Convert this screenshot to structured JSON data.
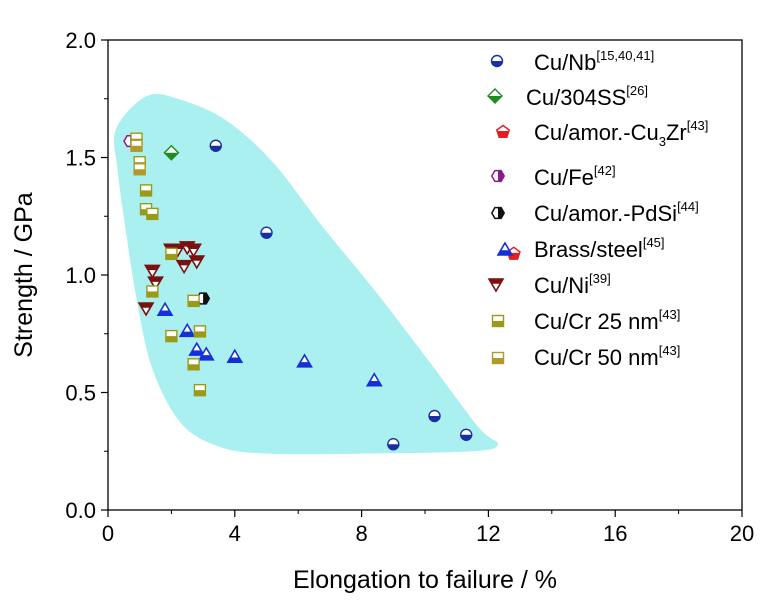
{
  "chart_data": {
    "type": "scatter",
    "title": "",
    "xlabel": "Elongation to failure / %",
    "ylabel": "Strength / GPa",
    "xlim": [
      0,
      20
    ],
    "ylim": [
      0.0,
      2.0
    ],
    "x_ticks": [
      0,
      4,
      8,
      12,
      16,
      20
    ],
    "x_tick_labels": [
      "0",
      "4",
      "8",
      "12",
      "16",
      "20"
    ],
    "y_ticks": [
      0.0,
      0.5,
      1.0,
      1.5,
      2.0
    ],
    "y_tick_labels": [
      "0.0",
      "0.5",
      "1.0",
      "1.5",
      "2.0"
    ],
    "grid": false,
    "legend_placement": "top-right",
    "shaded_region_color": "#aaf0f0",
    "shaded_region": [
      [
        0.25,
        1.62
      ],
      [
        1.2,
        1.76
      ],
      [
        2.2,
        1.75
      ],
      [
        3.7,
        1.66
      ],
      [
        5.2,
        1.48
      ],
      [
        6.8,
        1.2
      ],
      [
        8.5,
        0.92
      ],
      [
        10.2,
        0.62
      ],
      [
        11.7,
        0.35
      ],
      [
        12.3,
        0.28
      ],
      [
        11.5,
        0.25
      ],
      [
        8.0,
        0.24
      ],
      [
        5.0,
        0.24
      ],
      [
        3.5,
        0.27
      ],
      [
        2.3,
        0.37
      ],
      [
        1.4,
        0.6
      ],
      [
        0.9,
        0.9
      ],
      [
        0.55,
        1.2
      ],
      [
        0.3,
        1.45
      ]
    ],
    "series": [
      {
        "name": "Cu/Nb",
        "ref": "[15,40,41]",
        "marker": "circle-half",
        "color": "#1a2fa0",
        "points": [
          [
            3.4,
            1.55
          ],
          [
            5.0,
            1.18
          ],
          [
            9.0,
            0.28
          ],
          [
            10.3,
            0.4
          ],
          [
            11.3,
            0.32
          ]
        ]
      },
      {
        "name": "Cu/304SS",
        "ref": "[26]",
        "marker": "diamond",
        "color": "#1e8c1e",
        "points": [
          [
            2.0,
            1.52
          ]
        ]
      },
      {
        "name": "Cu/amor.-Cu",
        "sub": "3",
        "name_tail": "Zr",
        "ref": "[43]",
        "marker": "pentagon",
        "color": "#e02020",
        "points": [
          [
            12.8,
            1.09
          ]
        ]
      },
      {
        "name": "Cu/Fe",
        "ref": "[42]",
        "marker": "hexagon",
        "color": "#8b1a8b",
        "points": [
          [
            0.7,
            1.57
          ]
        ]
      },
      {
        "name": "Cu/amor.-PdSi",
        "ref": "[44]",
        "marker": "hexagon",
        "color": "#111111",
        "points": [
          [
            3.0,
            0.9
          ]
        ]
      },
      {
        "name": "Brass/steel",
        "ref": "[45]",
        "marker": "triangle-up",
        "color": "#1530d8",
        "points": [
          [
            1.8,
            0.85
          ],
          [
            2.5,
            0.76
          ],
          [
            2.8,
            0.68
          ],
          [
            3.1,
            0.66
          ],
          [
            4.0,
            0.65
          ],
          [
            6.2,
            0.63
          ],
          [
            8.4,
            0.55
          ]
        ]
      },
      {
        "name": "Cu/Ni",
        "ref": "[39]",
        "marker": "triangle-down",
        "color": "#7a1010",
        "points": [
          [
            1.2,
            0.86
          ],
          [
            1.4,
            1.02
          ],
          [
            1.5,
            0.97
          ],
          [
            2.0,
            1.11
          ],
          [
            2.2,
            1.11
          ],
          [
            2.4,
            1.04
          ],
          [
            2.5,
            1.12
          ],
          [
            2.7,
            1.11
          ],
          [
            2.8,
            1.06
          ]
        ]
      },
      {
        "name": "Cu/Cr 25 nm",
        "ref": "[43]",
        "marker": "square-half",
        "color": "#9a9a18",
        "points": [
          [
            0.9,
            1.58
          ],
          [
            1.0,
            1.48
          ],
          [
            1.2,
            1.36
          ],
          [
            1.2,
            1.28
          ],
          [
            1.4,
            1.26
          ],
          [
            2.0,
            1.09
          ],
          [
            1.4,
            0.93
          ],
          [
            2.7,
            0.89
          ],
          [
            2.9,
            0.76
          ],
          [
            2.7,
            0.62
          ],
          [
            2.0,
            0.74
          ],
          [
            2.9,
            0.51
          ]
        ]
      },
      {
        "name": "Cu/Cr 50 nm",
        "ref": "[43]",
        "marker": "square-half",
        "color": "#b09a28",
        "points": [
          [
            0.9,
            1.55
          ],
          [
            1.0,
            1.45
          ]
        ]
      }
    ]
  }
}
